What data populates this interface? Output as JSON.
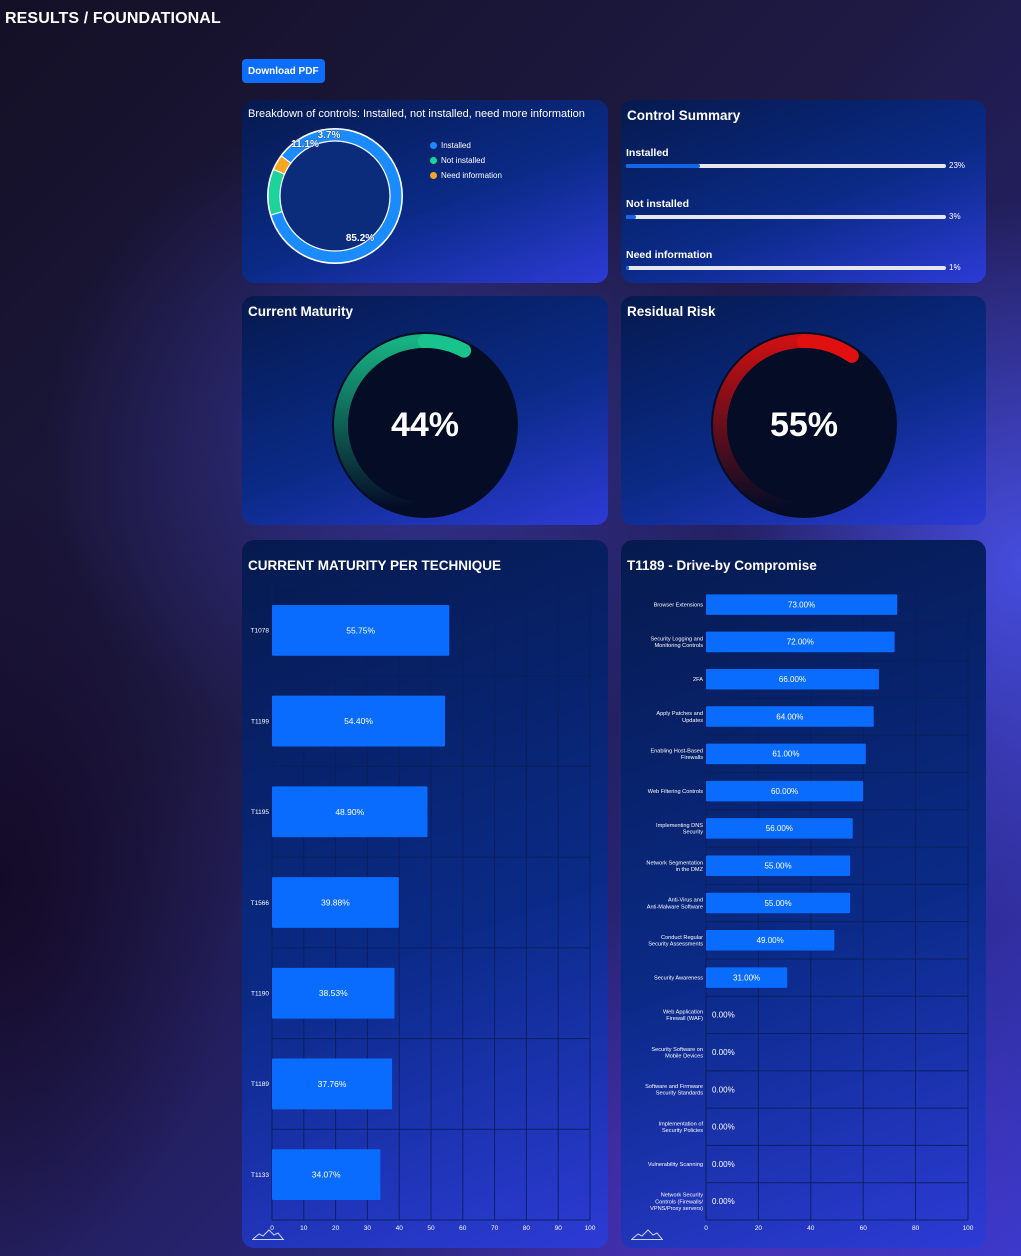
{
  "page": {
    "title": "RESULTS / FOUNDATIONAL"
  },
  "toolbar": {
    "download_label": "Download PDF"
  },
  "breakdown": {
    "title": "Breakdown of controls: Installed, not installed, need more information",
    "slices": [
      {
        "label": "Installed",
        "value": 85.2,
        "display": "85.2%",
        "color": "#1a8cff"
      },
      {
        "label": "Not installed",
        "value": 11.1,
        "display": "11.1%",
        "color": "#1ed39a"
      },
      {
        "label": "Need information",
        "value": 3.7,
        "display": "3.7%",
        "color": "#f5a623"
      }
    ]
  },
  "summary": {
    "title": "Control Summary",
    "rows": [
      {
        "label": "Installed",
        "value": 23,
        "display": "23%"
      },
      {
        "label": "Not installed",
        "value": 3,
        "display": "3%"
      },
      {
        "label": "Need information",
        "value": 1,
        "display": "1%"
      }
    ]
  },
  "maturity": {
    "title": "Current Maturity",
    "value": 44,
    "display": "44%",
    "color": "#19c48c"
  },
  "risk": {
    "title": "Residual Risk",
    "value": 55,
    "display": "55%",
    "color": "#e01010"
  },
  "chart_data": [
    {
      "type": "bar",
      "orientation": "horizontal",
      "title": "CURRENT MATURITY PER TECHNIQUE",
      "categories": [
        "T1078",
        "T1199",
        "T1195",
        "T1566",
        "T1190",
        "T1189",
        "T1133"
      ],
      "values": [
        55.75,
        54.4,
        48.9,
        39.88,
        38.53,
        37.76,
        34.07
      ],
      "labels": [
        "55.75%",
        "54.40%",
        "48.90%",
        "39.88%",
        "38.53%",
        "37.76%",
        "34.07%"
      ],
      "xlim": [
        0,
        100
      ],
      "xticks": [
        "0",
        "10",
        "20",
        "30",
        "40",
        "50",
        "60",
        "70",
        "80",
        "90",
        "100"
      ],
      "grid": true,
      "bar_color": "#0a6cff"
    },
    {
      "type": "bar",
      "orientation": "horizontal",
      "title": "T1189 - Drive-by Compromise",
      "categories": [
        "Browser Extensions",
        "Security Logging and|Monitoring Controls",
        "2FA",
        "Apply Patches and|Updates",
        "Enabling Host-Based|Firewalls",
        "Web Filtering Controls",
        "Implementing DNS|Security",
        "Network Segmentation|in the DMZ",
        "Anti-Virus and|Anti-Malware Software",
        "Conduct Regular|Security Assessments",
        "Security Awareness",
        "Web Application|Firewall (WAF)",
        "Security Software on|Mobile Devices",
        "Software and Firmware|Security Standards",
        "Implementation of|Security Policies",
        "Vulnerability Scanning",
        "Network Security|Controls (Firewalls/|VPNS/Proxy servers)"
      ],
      "values": [
        73,
        72,
        66,
        64,
        61,
        60,
        56,
        55,
        55,
        49,
        31,
        0,
        0,
        0,
        0,
        0,
        0
      ],
      "labels": [
        "73.00%",
        "72.00%",
        "66.00%",
        "64.00%",
        "61.00%",
        "60.00%",
        "56.00%",
        "55.00%",
        "55.00%",
        "49.00%",
        "31.00%",
        "0.00%",
        "0.00%",
        "0.00%",
        "0.00%",
        "0.00%",
        "0.00%"
      ],
      "xlim": [
        0,
        100
      ],
      "xticks": [
        "0",
        "20",
        "40",
        "60",
        "80",
        "100"
      ],
      "grid": true,
      "bar_color": "#0a6cff"
    }
  ],
  "icons": {
    "chart_logo": "mountain-sparkline-icon"
  }
}
